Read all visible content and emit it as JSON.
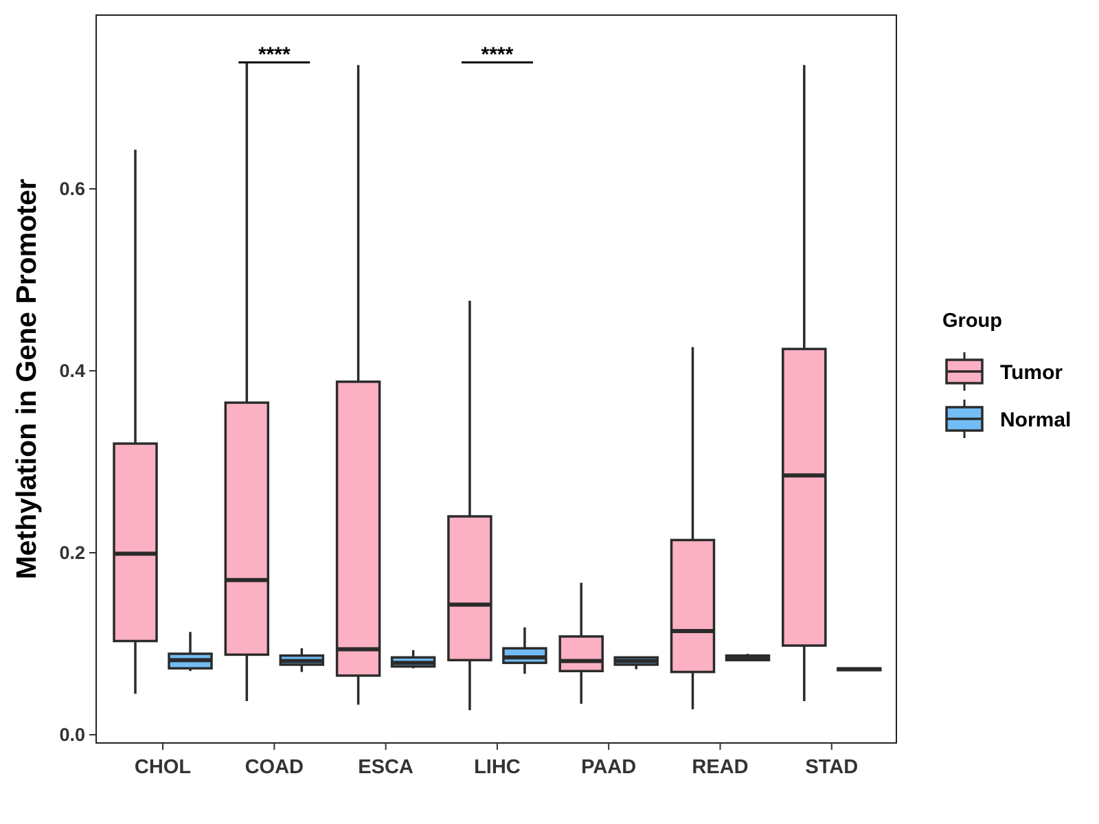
{
  "chart_data": {
    "type": "boxplot",
    "title": "",
    "xlabel": "",
    "ylabel": "Methylation in Gene Promoter",
    "ylim": [
      -0.01,
      0.78
    ],
    "yticks": [
      "0.0",
      "0.2",
      "0.4",
      "0.6"
    ],
    "ytick_values": [
      0.0,
      0.2,
      0.4,
      0.6
    ],
    "categories": [
      "CHOL",
      "COAD",
      "ESCA",
      "LIHC",
      "PAAD",
      "READ",
      "STAD"
    ],
    "legend": {
      "title": "Group",
      "position": "right",
      "entries": [
        {
          "name": "Tumor",
          "color": "#FBB1C3"
        },
        {
          "name": "Normal",
          "color": "#72BDF5"
        }
      ]
    },
    "series": [
      {
        "name": "Tumor",
        "color": "#FBB1C3",
        "boxes": [
          {
            "category": "CHOL",
            "min": 0.045,
            "q1": 0.103,
            "median": 0.199,
            "q3": 0.32,
            "max": 0.643
          },
          {
            "category": "COAD",
            "min": 0.037,
            "q1": 0.088,
            "median": 0.17,
            "q3": 0.365,
            "max": 0.738
          },
          {
            "category": "ESCA",
            "min": 0.033,
            "q1": 0.065,
            "median": 0.094,
            "q3": 0.388,
            "max": 0.736
          },
          {
            "category": "LIHC",
            "min": 0.027,
            "q1": 0.082,
            "median": 0.143,
            "q3": 0.24,
            "max": 0.477
          },
          {
            "category": "PAAD",
            "min": 0.034,
            "q1": 0.07,
            "median": 0.081,
            "q3": 0.108,
            "max": 0.167
          },
          {
            "category": "READ",
            "min": 0.028,
            "q1": 0.069,
            "median": 0.114,
            "q3": 0.214,
            "max": 0.426
          },
          {
            "category": "STAD",
            "min": 0.037,
            "q1": 0.098,
            "median": 0.285,
            "q3": 0.424,
            "max": 0.736
          }
        ]
      },
      {
        "name": "Normal",
        "color": "#72BDF5",
        "boxes": [
          {
            "category": "CHOL",
            "min": 0.07,
            "q1": 0.073,
            "median": 0.082,
            "q3": 0.089,
            "max": 0.113
          },
          {
            "category": "COAD",
            "min": 0.069,
            "q1": 0.077,
            "median": 0.081,
            "q3": 0.087,
            "max": 0.095
          },
          {
            "category": "ESCA",
            "min": 0.073,
            "q1": 0.075,
            "median": 0.079,
            "q3": 0.085,
            "max": 0.093
          },
          {
            "category": "LIHC",
            "min": 0.067,
            "q1": 0.079,
            "median": 0.085,
            "q3": 0.095,
            "max": 0.118
          },
          {
            "category": "PAAD",
            "min": 0.072,
            "q1": 0.077,
            "median": 0.081,
            "q3": 0.085,
            "max": 0.086
          },
          {
            "category": "READ",
            "min": 0.081,
            "q1": 0.082,
            "median": 0.084,
            "q3": 0.087,
            "max": 0.089
          },
          {
            "category": "STAD",
            "min": 0.071,
            "q1": 0.071,
            "median": 0.072,
            "q3": 0.073,
            "max": 0.073
          }
        ]
      }
    ],
    "annotations": [
      {
        "category": "COAD",
        "label": "****",
        "y": 0.739
      },
      {
        "category": "LIHC",
        "label": "****",
        "y": 0.739
      }
    ]
  }
}
